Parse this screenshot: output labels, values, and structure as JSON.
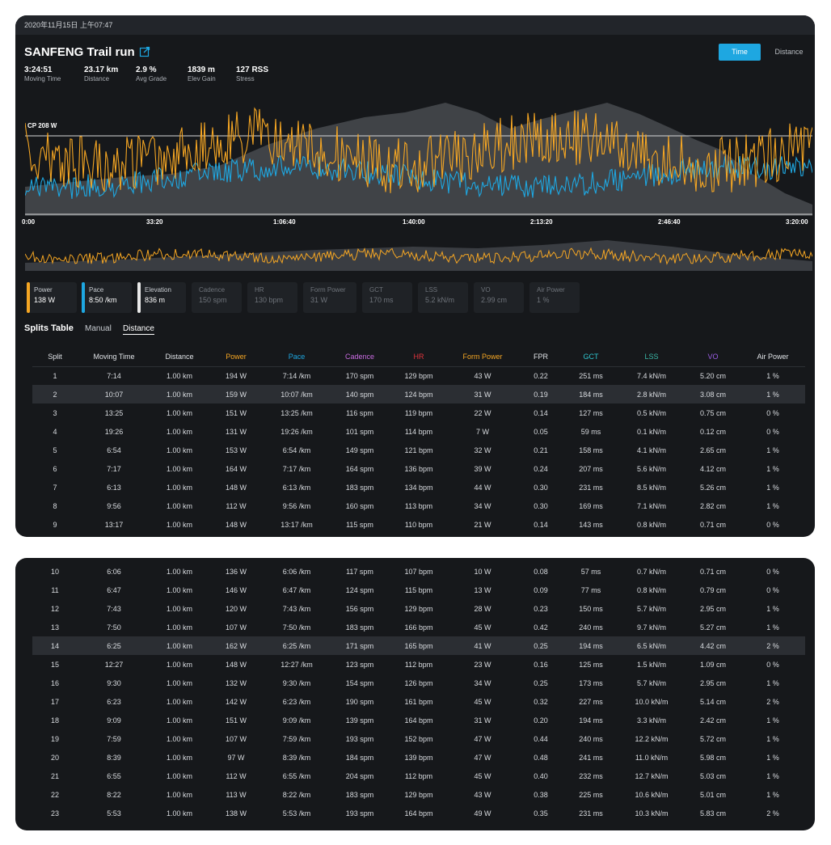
{
  "header": {
    "datetime": "2020年11月15日 上午07:47",
    "title": "SANFENG Trail run",
    "stats": [
      {
        "value": "3:24:51",
        "label": "Moving Time"
      },
      {
        "value": "23.17 km",
        "label": "Distance"
      },
      {
        "value": "2.9 %",
        "label": "Avg Grade"
      },
      {
        "value": "1839 m",
        "label": "Elev Gain"
      },
      {
        "value": "127 RSS",
        "label": "Stress"
      }
    ],
    "toggle": {
      "time": "Time",
      "distance": "Distance"
    }
  },
  "chart": {
    "cp_label": "CP 208 W",
    "x_ticks": [
      "0:00",
      "33:20",
      "1:06:40",
      "1:40:00",
      "2:13:20",
      "2:46:40",
      "3:20:00"
    ]
  },
  "colors": {
    "power": "#f5a623",
    "pace": "#1ea7e1",
    "elevation": "#8a8d92",
    "cadence_header": "#c86be0",
    "hr_header": "#e0343c",
    "form_power_header": "#f5a623",
    "gct_header": "#2fc6d0",
    "lss_header": "#3bb9a8",
    "vo_header": "#9b5de5"
  },
  "metric_cards": [
    {
      "name": "Power",
      "value": "138 W",
      "active": true,
      "color": "#f5a623"
    },
    {
      "name": "Pace",
      "value": "8:50 /km",
      "active": true,
      "color": "#1ea7e1"
    },
    {
      "name": "Elevation",
      "value": "836 m",
      "active": true,
      "color": "#e8e8e8"
    },
    {
      "name": "Cadence",
      "value": "150 spm",
      "active": false
    },
    {
      "name": "HR",
      "value": "130 bpm",
      "active": false
    },
    {
      "name": "Form Power",
      "value": "31 W",
      "active": false
    },
    {
      "name": "GCT",
      "value": "170 ms",
      "active": false
    },
    {
      "name": "LSS",
      "value": "5.2 kN/m",
      "active": false
    },
    {
      "name": "VO",
      "value": "2.99 cm",
      "active": false
    },
    {
      "name": "Air Power",
      "value": "1 %",
      "active": false
    }
  ],
  "splits": {
    "title": "Splits Table",
    "tabs": {
      "manual": "Manual",
      "distance": "Distance"
    },
    "columns": [
      "Split",
      "Moving Time",
      "Distance",
      "Power",
      "Pace",
      "Cadence",
      "HR",
      "Form Power",
      "FPR",
      "GCT",
      "LSS",
      "VO",
      "Air Power"
    ],
    "rows": [
      [
        "1",
        "7:14",
        "1.00 km",
        "194 W",
        "7:14 /km",
        "170 spm",
        "129 bpm",
        "43 W",
        "0.22",
        "251 ms",
        "7.4 kN/m",
        "5.20 cm",
        "1 %"
      ],
      [
        "2",
        "10:07",
        "1.00 km",
        "159 W",
        "10:07 /km",
        "140 spm",
        "124 bpm",
        "31 W",
        "0.19",
        "184 ms",
        "2.8 kN/m",
        "3.08 cm",
        "1 %"
      ],
      [
        "3",
        "13:25",
        "1.00 km",
        "151 W",
        "13:25 /km",
        "116 spm",
        "119 bpm",
        "22 W",
        "0.14",
        "127 ms",
        "0.5 kN/m",
        "0.75 cm",
        "0 %"
      ],
      [
        "4",
        "19:26",
        "1.00 km",
        "131 W",
        "19:26 /km",
        "101 spm",
        "114 bpm",
        "7 W",
        "0.05",
        "59 ms",
        "0.1 kN/m",
        "0.12 cm",
        "0 %"
      ],
      [
        "5",
        "6:54",
        "1.00 km",
        "153 W",
        "6:54 /km",
        "149 spm",
        "121 bpm",
        "32 W",
        "0.21",
        "158 ms",
        "4.1 kN/m",
        "2.65 cm",
        "1 %"
      ],
      [
        "6",
        "7:17",
        "1.00 km",
        "164 W",
        "7:17 /km",
        "164 spm",
        "136 bpm",
        "39 W",
        "0.24",
        "207 ms",
        "5.6 kN/m",
        "4.12 cm",
        "1 %"
      ],
      [
        "7",
        "6:13",
        "1.00 km",
        "148 W",
        "6:13 /km",
        "183 spm",
        "134 bpm",
        "44 W",
        "0.30",
        "231 ms",
        "8.5 kN/m",
        "5.26 cm",
        "1 %"
      ],
      [
        "8",
        "9:56",
        "1.00 km",
        "112 W",
        "9:56 /km",
        "160 spm",
        "113 bpm",
        "34 W",
        "0.30",
        "169 ms",
        "7.1 kN/m",
        "2.82 cm",
        "1 %"
      ],
      [
        "9",
        "13:17",
        "1.00 km",
        "148 W",
        "13:17 /km",
        "115 spm",
        "110 bpm",
        "21 W",
        "0.14",
        "143 ms",
        "0.8 kN/m",
        "0.71 cm",
        "0 %"
      ],
      [
        "10",
        "6:06",
        "1.00 km",
        "136 W",
        "6:06 /km",
        "117 spm",
        "107 bpm",
        "10 W",
        "0.08",
        "57 ms",
        "0.7 kN/m",
        "0.71 cm",
        "0 %"
      ],
      [
        "11",
        "6:47",
        "1.00 km",
        "146 W",
        "6:47 /km",
        "124 spm",
        "115 bpm",
        "13 W",
        "0.09",
        "77 ms",
        "0.8 kN/m",
        "0.79 cm",
        "0 %"
      ],
      [
        "12",
        "7:43",
        "1.00 km",
        "120 W",
        "7:43 /km",
        "156 spm",
        "129 bpm",
        "28 W",
        "0.23",
        "150 ms",
        "5.7 kN/m",
        "2.95 cm",
        "1 %"
      ],
      [
        "13",
        "7:50",
        "1.00 km",
        "107 W",
        "7:50 /km",
        "183 spm",
        "166 bpm",
        "45 W",
        "0.42",
        "240 ms",
        "9.7 kN/m",
        "5.27 cm",
        "1 %"
      ],
      [
        "14",
        "6:25",
        "1.00 km",
        "162 W",
        "6:25 /km",
        "171 spm",
        "165 bpm",
        "41 W",
        "0.25",
        "194 ms",
        "6.5 kN/m",
        "4.42 cm",
        "2 %"
      ],
      [
        "15",
        "12:27",
        "1.00 km",
        "148 W",
        "12:27 /km",
        "123 spm",
        "112 bpm",
        "23 W",
        "0.16",
        "125 ms",
        "1.5 kN/m",
        "1.09 cm",
        "0 %"
      ],
      [
        "16",
        "9:30",
        "1.00 km",
        "132 W",
        "9:30 /km",
        "154 spm",
        "126 bpm",
        "34 W",
        "0.25",
        "173 ms",
        "5.7 kN/m",
        "2.95 cm",
        "1 %"
      ],
      [
        "17",
        "6:23",
        "1.00 km",
        "142 W",
        "6:23 /km",
        "190 spm",
        "161 bpm",
        "45 W",
        "0.32",
        "227 ms",
        "10.0 kN/m",
        "5.14 cm",
        "2 %"
      ],
      [
        "18",
        "9:09",
        "1.00 km",
        "151 W",
        "9:09 /km",
        "139 spm",
        "164 bpm",
        "31 W",
        "0.20",
        "194 ms",
        "3.3 kN/m",
        "2.42 cm",
        "1 %"
      ],
      [
        "19",
        "7:59",
        "1.00 km",
        "107 W",
        "7:59 /km",
        "193 spm",
        "152 bpm",
        "47 W",
        "0.44",
        "240 ms",
        "12.2 kN/m",
        "5.72 cm",
        "1 %"
      ],
      [
        "20",
        "8:39",
        "1.00 km",
        "97 W",
        "8:39 /km",
        "184 spm",
        "139 bpm",
        "47 W",
        "0.48",
        "241 ms",
        "11.0 kN/m",
        "5.98 cm",
        "1 %"
      ],
      [
        "21",
        "6:55",
        "1.00 km",
        "112 W",
        "6:55 /km",
        "204 spm",
        "112 bpm",
        "45 W",
        "0.40",
        "232 ms",
        "12.7 kN/m",
        "5.03 cm",
        "1 %"
      ],
      [
        "22",
        "8:22",
        "1.00 km",
        "113 W",
        "8:22 /km",
        "183 spm",
        "129 bpm",
        "43 W",
        "0.38",
        "225 ms",
        "10.6 kN/m",
        "5.01 cm",
        "1 %"
      ],
      [
        "23",
        "5:53",
        "1.00 km",
        "138 W",
        "5:53 /km",
        "193 spm",
        "164 bpm",
        "49 W",
        "0.35",
        "231 ms",
        "10.3 kN/m",
        "5.83 cm",
        "2 %"
      ]
    ],
    "highlighted_splits": [
      "2",
      "14"
    ]
  }
}
